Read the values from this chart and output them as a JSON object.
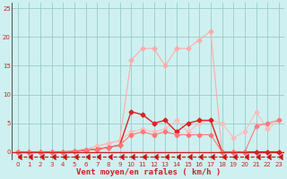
{
  "xlabel": "Vent moyen/en rafales ( km/h )",
  "bg_color": "#cff0f0",
  "grid_color": "#99cccc",
  "xlim": [
    -0.5,
    23.5
  ],
  "ylim": [
    -1.5,
    26
  ],
  "yticks": [
    0,
    5,
    10,
    15,
    20,
    25
  ],
  "xticks": [
    0,
    1,
    2,
    3,
    4,
    5,
    6,
    7,
    8,
    9,
    10,
    11,
    12,
    13,
    14,
    15,
    16,
    17,
    18,
    19,
    20,
    21,
    22,
    23
  ],
  "series": [
    {
      "x": [
        0,
        1,
        2,
        3,
        4,
        5,
        6,
        7,
        8,
        9,
        10,
        11,
        12,
        13,
        14,
        15,
        16,
        17,
        18,
        19,
        20,
        21,
        22,
        23
      ],
      "y": [
        0,
        0,
        0,
        0,
        0,
        0.2,
        0.5,
        1,
        1.5,
        2,
        16,
        18,
        18,
        15,
        18,
        18,
        19.5,
        21,
        0,
        0,
        0,
        0,
        0,
        0
      ],
      "color": "#ffaaaa",
      "lw": 0.8,
      "marker": "D",
      "ms": 2.5
    },
    {
      "x": [
        0,
        1,
        2,
        3,
        4,
        5,
        6,
        7,
        8,
        9,
        10,
        11,
        12,
        13,
        14,
        15,
        16,
        17,
        18,
        19,
        20,
        21,
        22,
        23
      ],
      "y": [
        0,
        0,
        0,
        0,
        0,
        0.2,
        0.5,
        1,
        1.5,
        2,
        3.5,
        4,
        3.5,
        4,
        5.5,
        3.5,
        5,
        5.5,
        5,
        2.5,
        3.5,
        7,
        4,
        5.5
      ],
      "color": "#ffbbbb",
      "lw": 0.8,
      "marker": "D",
      "ms": 2.5
    },
    {
      "x": [
        0,
        1,
        2,
        3,
        4,
        5,
        6,
        7,
        8,
        9,
        10,
        11,
        12,
        13,
        14,
        15,
        16,
        17,
        18,
        19,
        20,
        21,
        22,
        23
      ],
      "y": [
        0,
        0,
        0,
        0,
        0,
        0.1,
        0.3,
        0.5,
        0.8,
        1.2,
        7,
        6.5,
        5,
        5.5,
        3.5,
        5,
        5.5,
        5.5,
        0,
        0,
        0,
        0,
        0,
        0
      ],
      "color": "#dd2222",
      "lw": 1.0,
      "marker": "D",
      "ms": 2.5
    },
    {
      "x": [
        0,
        1,
        2,
        3,
        4,
        5,
        6,
        7,
        8,
        9,
        10,
        11,
        12,
        13,
        14,
        15,
        16,
        17,
        18,
        19,
        20,
        21,
        22,
        23
      ],
      "y": [
        0,
        0,
        0,
        0,
        0,
        0.1,
        0.3,
        0.5,
        0.8,
        1.2,
        3,
        3.5,
        3,
        3.5,
        3,
        3,
        3,
        3,
        0,
        0,
        0,
        4.5,
        5,
        5.5
      ],
      "color": "#ff7777",
      "lw": 0.8,
      "marker": "D",
      "ms": 2.5
    },
    {
      "x": [
        0,
        1,
        2,
        3,
        4,
        5,
        6,
        7,
        8,
        9,
        10,
        11,
        12,
        13,
        14,
        15,
        16,
        17,
        18,
        19,
        20,
        21,
        22,
        23
      ],
      "y": [
        -0.8,
        -0.8,
        -0.8,
        -0.8,
        -0.8,
        -0.8,
        -0.8,
        -0.8,
        -0.8,
        -0.8,
        -0.8,
        -0.8,
        -0.8,
        -0.8,
        -0.8,
        -0.8,
        -0.8,
        -0.8,
        -0.8,
        -0.8,
        -0.8,
        -0.8,
        -0.8,
        -0.8
      ],
      "color": "#cc1111",
      "lw": 0.8,
      "marker": 4,
      "ms": 4,
      "linestyle": "--"
    }
  ]
}
